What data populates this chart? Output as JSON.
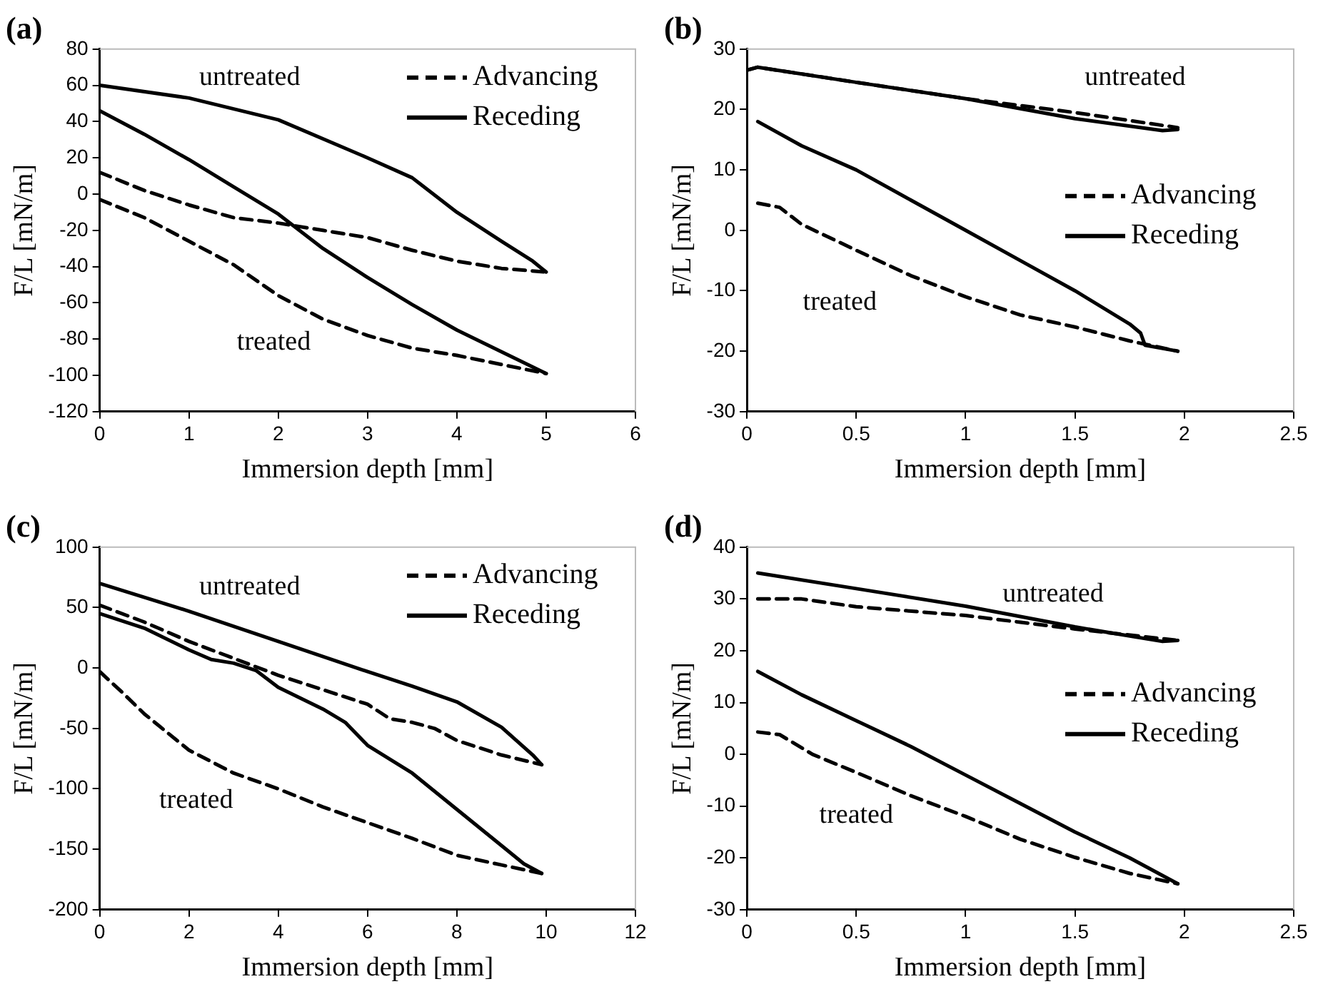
{
  "chart_data": [
    {
      "type": "line",
      "title": "(a)",
      "xlabel": "Immersion depth [mm]",
      "ylabel": "F/L [mN/m]",
      "xlim": [
        0,
        6
      ],
      "xticks": [
        0,
        1,
        2,
        3,
        4,
        5,
        6
      ],
      "ylim": [
        -120,
        80
      ],
      "yticks": [
        -120,
        -100,
        -80,
        -60,
        -40,
        -20,
        0,
        20,
        40,
        60,
        80
      ],
      "grid": false,
      "marker": "none",
      "legend": "top right",
      "annotations": [
        "untreated",
        "treated"
      ],
      "series": [
        {
          "name": "Advancing",
          "color": "#000000",
          "line_style": "dashed",
          "x": [
            0,
            0.5,
            1,
            1.5,
            2,
            2.5,
            3,
            3.5,
            4,
            4.5,
            5
          ],
          "values": [
            12,
            2,
            -6,
            -13,
            -16,
            -20,
            -24,
            -31,
            -37,
            -41,
            -43
          ]
        },
        {
          "name": "Receding",
          "color": "#000000",
          "line_style": "solid",
          "x": [
            0,
            1,
            2,
            3,
            3.5,
            4,
            4.5,
            4.85,
            5
          ],
          "values": [
            60,
            53,
            41,
            20,
            9,
            -10,
            -26,
            -37,
            -43
          ]
        },
        {
          "color": "#000000",
          "line_style": "dashed",
          "x": [
            0,
            0.5,
            1,
            1.5,
            2,
            2.5,
            3,
            3.5,
            4,
            4.5,
            5
          ],
          "values": [
            -3,
            -13,
            -26,
            -39,
            -56,
            -69,
            -78,
            -85,
            -89,
            -94,
            -99
          ]
        },
        {
          "color": "#000000",
          "line_style": "solid",
          "x": [
            0,
            0.5,
            1,
            1.5,
            2,
            2.5,
            3,
            3.5,
            4,
            4.5,
            5
          ],
          "values": [
            46,
            33,
            19,
            4,
            -11,
            -30,
            -46,
            -61,
            -75,
            -87,
            -99
          ]
        }
      ]
    },
    {
      "type": "line",
      "title": "(b)",
      "xlabel": "Immersion depth [mm]",
      "ylabel": "F/L [mN/m]",
      "xlim": [
        0,
        2.5
      ],
      "xticks": [
        0,
        0.5,
        1,
        1.5,
        2,
        2.5
      ],
      "ylim": [
        -30,
        30
      ],
      "yticks": [
        -30,
        -20,
        -10,
        0,
        10,
        20,
        30
      ],
      "grid": false,
      "marker": "none",
      "legend": "right",
      "annotations": [
        "untreated",
        "treated"
      ],
      "series": [
        {
          "name": "Advancing",
          "color": "#000000",
          "line_style": "dashed",
          "x": [
            0,
            0.05,
            0.5,
            1,
            1.5,
            1.97
          ],
          "values": [
            26.5,
            27,
            24.5,
            21.8,
            19.5,
            17
          ]
        },
        {
          "name": "Receding",
          "color": "#000000",
          "line_style": "solid",
          "x": [
            0,
            0.05,
            0.5,
            1,
            1.5,
            1.9,
            1.97
          ],
          "values": [
            26.5,
            27,
            24.5,
            21.8,
            18.5,
            16.5,
            16.7
          ]
        },
        {
          "color": "#000000",
          "line_style": "dashed",
          "x": [
            0.05,
            0.15,
            0.25,
            0.5,
            0.75,
            1,
            1.25,
            1.5,
            1.75,
            1.97
          ],
          "values": [
            4.5,
            3.8,
            1,
            -3.3,
            -7.5,
            -11,
            -14,
            -16,
            -18.3,
            -20
          ]
        },
        {
          "color": "#000000",
          "line_style": "solid",
          "x": [
            0.05,
            0.25,
            0.5,
            0.75,
            1,
            1.25,
            1.5,
            1.75,
            1.8,
            1.82,
            1.97
          ],
          "values": [
            18,
            14,
            10,
            5,
            0,
            -5,
            -10,
            -15.5,
            -17,
            -19,
            -20
          ]
        }
      ]
    },
    {
      "type": "line",
      "title": "(c)",
      "xlabel": "Immersion depth [mm]",
      "ylabel": "F/L [mN/m]",
      "xlim": [
        0,
        12
      ],
      "xticks": [
        0,
        2,
        4,
        6,
        8,
        10,
        12
      ],
      "ylim": [
        -200,
        100
      ],
      "yticks": [
        -200,
        -150,
        -100,
        -50,
        0,
        50,
        100
      ],
      "grid": false,
      "marker": "none",
      "legend": "top right",
      "annotations": [
        "untreated",
        "treated"
      ],
      "series": [
        {
          "name": "Advancing",
          "color": "#000000",
          "line_style": "dashed",
          "x": [
            0,
            1,
            2,
            3,
            4,
            5,
            6,
            6.5,
            7,
            7.5,
            8,
            9,
            9.9
          ],
          "values": [
            52,
            38,
            22,
            8,
            -6,
            -18,
            -30,
            -42,
            -45,
            -50,
            -60,
            -72,
            -80
          ]
        },
        {
          "name": "Receding",
          "color": "#000000",
          "line_style": "solid",
          "x": [
            0,
            2,
            4,
            6,
            7,
            8,
            9,
            9.7,
            9.9
          ],
          "values": [
            70,
            47,
            22,
            -3,
            -15,
            -28,
            -49,
            -72,
            -80
          ]
        },
        {
          "color": "#000000",
          "line_style": "dashed",
          "x": [
            0,
            0.5,
            1,
            2,
            3,
            4,
            5,
            6,
            7,
            8,
            9,
            9.9
          ],
          "values": [
            -3,
            -20,
            -38,
            -68,
            -87,
            -100,
            -115,
            -128,
            -141,
            -155,
            -163,
            -170
          ]
        },
        {
          "color": "#000000",
          "line_style": "solid",
          "x": [
            0,
            1,
            2,
            2.5,
            3,
            3.5,
            4,
            4.5,
            5,
            5.5,
            6,
            7,
            8,
            9,
            9.5,
            9.9
          ],
          "values": [
            45,
            33,
            15,
            7,
            4,
            -2,
            -16,
            -25,
            -34,
            -45,
            -64,
            -87,
            -117,
            -147,
            -162,
            -170
          ]
        }
      ]
    },
    {
      "type": "line",
      "title": "(d)",
      "xlabel": "Immersion depth [mm]",
      "ylabel": "F/L [mN/m]",
      "xlim": [
        0,
        2.5
      ],
      "xticks": [
        0,
        0.5,
        1,
        1.5,
        2,
        2.5
      ],
      "ylim": [
        -30,
        40
      ],
      "yticks": [
        -30,
        -20,
        -10,
        0,
        10,
        20,
        30,
        40
      ],
      "grid": false,
      "marker": "none",
      "legend": "right",
      "annotations": [
        "untreated",
        "treated"
      ],
      "series": [
        {
          "name": "Advancing",
          "color": "#000000",
          "line_style": "dashed",
          "x": [
            0.05,
            0.25,
            0.5,
            1,
            1.25,
            1.5,
            1.97
          ],
          "values": [
            30,
            30,
            28.5,
            26.8,
            25.5,
            24.2,
            22
          ]
        },
        {
          "name": "Receding",
          "color": "#000000",
          "line_style": "solid",
          "x": [
            0.05,
            0.5,
            1,
            1.5,
            1.9,
            1.97
          ],
          "values": [
            35,
            32,
            28.6,
            24.6,
            21.8,
            22
          ]
        },
        {
          "color": "#000000",
          "line_style": "dashed",
          "x": [
            0.05,
            0.15,
            0.3,
            0.5,
            0.75,
            1,
            1.25,
            1.5,
            1.75,
            1.97
          ],
          "values": [
            4.3,
            3.8,
            0,
            -3.5,
            -8,
            -12,
            -16.4,
            -19.9,
            -23,
            -25
          ]
        },
        {
          "color": "#000000",
          "line_style": "solid",
          "x": [
            0.05,
            0.25,
            0.5,
            0.75,
            1,
            1.25,
            1.5,
            1.75,
            1.97
          ],
          "values": [
            16,
            11.5,
            6.5,
            1.5,
            -4,
            -9.5,
            -15,
            -20,
            -25
          ]
        }
      ]
    }
  ]
}
